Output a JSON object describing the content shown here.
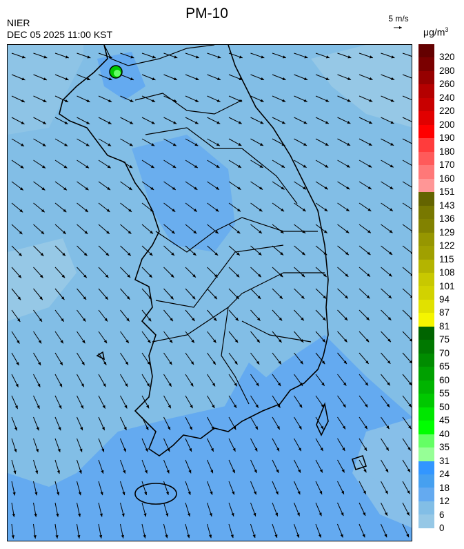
{
  "header": {
    "title": "PM-10",
    "agency": "NIER",
    "datetime": "DEC 05 2025 11:00 KST",
    "wind_reference": "5 m/s",
    "unit": "μg/m",
    "unit_sup": "3"
  },
  "map": {
    "region": "South Korea",
    "background_level_color": "#82bee6",
    "hotspot_color": "#00c800"
  },
  "colorbar": {
    "labels": [
      "320",
      "280",
      "260",
      "240",
      "220",
      "200",
      "190",
      "180",
      "170",
      "160",
      "151",
      "143",
      "136",
      "129",
      "122",
      "115",
      "108",
      "101",
      "94",
      "87",
      "81",
      "75",
      "70",
      "65",
      "60",
      "55",
      "50",
      "45",
      "40",
      "35",
      "31",
      "24",
      "18",
      "12",
      "6",
      "0"
    ],
    "colors": [
      "#640000",
      "#7a0000",
      "#960000",
      "#b40000",
      "#c80000",
      "#e10000",
      "#ff0000",
      "#ff3c3c",
      "#ff5a5a",
      "#ff7878",
      "#ff9696",
      "#646400",
      "#787800",
      "#828200",
      "#969600",
      "#a0a000",
      "#b4b400",
      "#c8c800",
      "#d2d200",
      "#e1e100",
      "#f5f500",
      "#006400",
      "#007800",
      "#008c00",
      "#00a000",
      "#00b400",
      "#00c800",
      "#00e600",
      "#00ff00",
      "#64ff64",
      "#96ff96",
      "#3296ff",
      "#46a0f0",
      "#64aaf0",
      "#82bee6",
      "#96c8e6"
    ]
  }
}
